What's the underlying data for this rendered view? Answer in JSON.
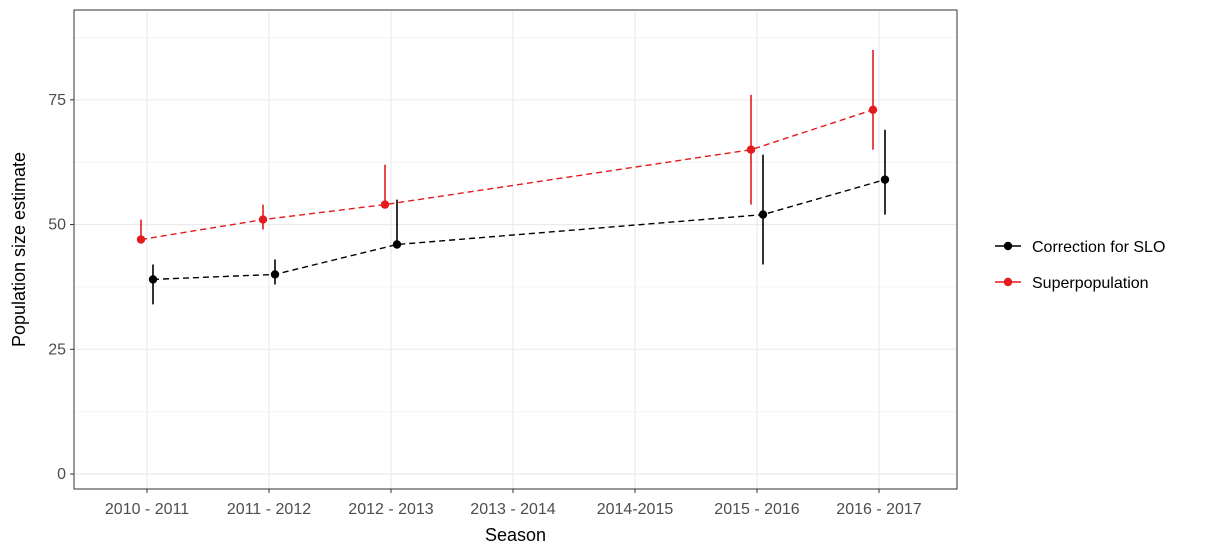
{
  "chart_data": {
    "type": "line",
    "xlabel": "Season",
    "ylabel": "Population size estimate",
    "categories": [
      "2010 - 2011",
      "2011 - 2012",
      "2012 - 2013",
      "2013 - 2014",
      "2014-2015",
      "2015 - 2016",
      "2016 - 2017"
    ],
    "ylim": [
      -3,
      93
    ],
    "yticks": [
      0,
      25,
      50,
      75
    ],
    "grid": true,
    "legend_position": "right",
    "series": [
      {
        "name": "Correction for SLO",
        "color": "#000000",
        "points": [
          {
            "x": "2010 - 2011",
            "y": 39,
            "lower": 34,
            "upper": 42
          },
          {
            "x": "2011 - 2012",
            "y": 40,
            "lower": 38,
            "upper": 43
          },
          {
            "x": "2012 - 2013",
            "y": 46,
            "lower": 46,
            "upper": 55
          },
          {
            "x": "2015 - 2016",
            "y": 52,
            "lower": 42,
            "upper": 64
          },
          {
            "x": "2016 - 2017",
            "y": 59,
            "lower": 52,
            "upper": 69
          }
        ]
      },
      {
        "name": "Superpopulation",
        "color": "#e41a1c",
        "points": [
          {
            "x": "2010 - 2011",
            "y": 47,
            "lower": 47,
            "upper": 51
          },
          {
            "x": "2011 - 2012",
            "y": 51,
            "lower": 49,
            "upper": 54
          },
          {
            "x": "2012 - 2013",
            "y": 54,
            "lower": 54,
            "upper": 62
          },
          {
            "x": "2015 - 2016",
            "y": 65,
            "lower": 54,
            "upper": 76
          },
          {
            "x": "2016 - 2017",
            "y": 73,
            "lower": 65,
            "upper": 85
          }
        ]
      }
    ]
  }
}
